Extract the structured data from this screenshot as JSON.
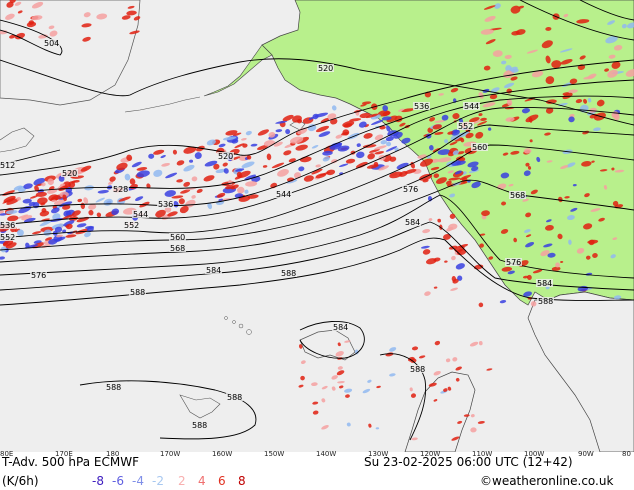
{
  "map": {
    "title": "T-Adv. 500 hPa  ECMWF",
    "units": "(K/6h)",
    "valid_time": "Su 23-02-2025 06:00 UTC (12+42)",
    "credit": "©weatheronline.co.uk",
    "colors": {
      "ocean": "#eeeeee",
      "land": "#b8f08c",
      "warm": "#e02010",
      "cold": "#3840e0",
      "light_warm": "#f4a0a0",
      "light_cold": "#90b8f0",
      "contour": "#000000",
      "coast": "#404040"
    },
    "legend": [
      {
        "value": "-8",
        "color": "#4020c0"
      },
      {
        "value": "-6",
        "color": "#6060e0"
      },
      {
        "value": "-4",
        "color": "#8090e8"
      },
      {
        "value": "-2",
        "color": "#a8c8f0"
      },
      {
        "value": "2",
        "color": "#f8b0b0"
      },
      {
        "value": "4",
        "color": "#f07070"
      },
      {
        "value": "6",
        "color": "#e03020"
      },
      {
        "value": "8",
        "color": "#c00000"
      }
    ],
    "longitude_labels": [
      "80E",
      "170E",
      "180",
      "170W",
      "160W",
      "150W",
      "140W",
      "130W",
      "120W",
      "110W",
      "100W",
      "90W",
      "80"
    ],
    "contour_labels": [
      {
        "text": "504"
      },
      {
        "text": "520"
      },
      {
        "text": "536"
      },
      {
        "text": "544"
      },
      {
        "text": "552"
      },
      {
        "text": "560"
      },
      {
        "text": "568"
      },
      {
        "text": "520"
      },
      {
        "text": "528"
      },
      {
        "text": "536"
      },
      {
        "text": "544"
      },
      {
        "text": "552"
      },
      {
        "text": "560"
      },
      {
        "text": "568"
      },
      {
        "text": "544"
      },
      {
        "text": "576"
      },
      {
        "text": "584"
      },
      {
        "text": "584"
      },
      {
        "text": "588"
      },
      {
        "text": "576"
      },
      {
        "text": "588"
      },
      {
        "text": "584"
      },
      {
        "text": "588"
      },
      {
        "text": "576"
      },
      {
        "text": "584"
      },
      {
        "text": "588"
      },
      {
        "text": "588"
      },
      {
        "text": "588"
      },
      {
        "text": "588"
      },
      {
        "text": "520"
      },
      {
        "text": "512"
      },
      {
        "text": "536"
      },
      {
        "text": "552"
      }
    ]
  }
}
